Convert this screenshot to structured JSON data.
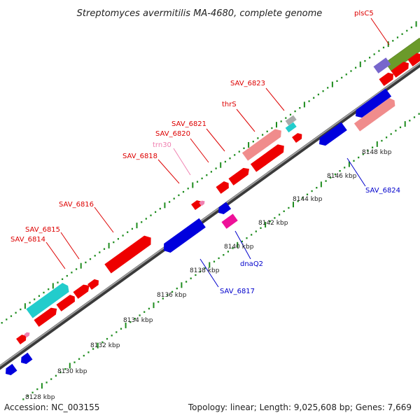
{
  "title": "Streptomyces avermitilis MA-4680, complete genome",
  "footer": {
    "accession": "Accession: NC_003155",
    "summary": "Topology: linear; Length: 9,025,608 bp; Genes: 7,669"
  },
  "colors": {
    "backbone": "#808080",
    "tick": "#1e8c1e",
    "forward_label": "#dd0000",
    "reverse_label": "#0000cc",
    "rna_label": "#f080b0",
    "red_gene": "#ee0000",
    "blue_gene": "#0000dd",
    "cyan_gene": "#22cccc",
    "salmon_gene": "#f08c8c",
    "magenta_gene": "#ee1199",
    "olive_gene": "#6b9a2a",
    "purple_gene": "#7766cc"
  },
  "scale_labels": [
    {
      "text": "8128 kbp"
    },
    {
      "text": "8130 kbp"
    },
    {
      "text": "8132 kbp"
    },
    {
      "text": "8134 kbp"
    },
    {
      "text": "8136 kbp"
    },
    {
      "text": "8138 kbp"
    },
    {
      "text": "8140 kbp"
    },
    {
      "text": "8142 kbp"
    },
    {
      "text": "8144 kbp"
    },
    {
      "text": "8146 kbp"
    },
    {
      "text": "8148 kbp"
    }
  ],
  "gene_labels": [
    {
      "text": "plsC5",
      "strand": "forward"
    },
    {
      "text": "SAV_6823",
      "strand": "forward"
    },
    {
      "text": "thrS",
      "strand": "forward"
    },
    {
      "text": "SAV_6821",
      "strand": "forward"
    },
    {
      "text": "SAV_6820",
      "strand": "forward"
    },
    {
      "text": "trn30",
      "strand": "rna"
    },
    {
      "text": "SAV_6818",
      "strand": "forward"
    },
    {
      "text": "SAV_6816",
      "strand": "forward"
    },
    {
      "text": "SAV_6815",
      "strand": "forward"
    },
    {
      "text": "SAV_6814",
      "strand": "forward"
    },
    {
      "text": "SAV_6824",
      "strand": "reverse"
    },
    {
      "text": "dnaQ2",
      "strand": "reverse"
    },
    {
      "text": "SAV_6817",
      "strand": "reverse"
    }
  ]
}
